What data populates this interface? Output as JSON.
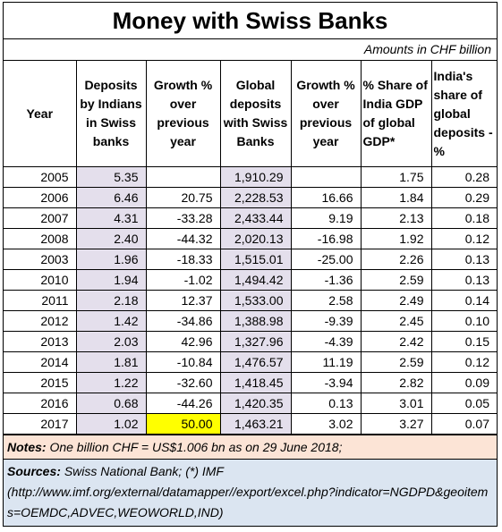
{
  "title": "Money with Swiss Banks",
  "units": "Amounts in CHF billion",
  "columns": [
    "Year",
    "Deposits by Indians in Swiss banks",
    "Growth % over previous year",
    "Global deposits with Swiss Banks",
    "Growth % over previous year",
    "% Share of India GDP of global GDP*",
    "India's share of global deposits - %"
  ],
  "rows": [
    [
      "2005",
      "5.35",
      "",
      "1,910.29",
      "",
      "1.75",
      "0.28"
    ],
    [
      "2006",
      "6.46",
      "20.75",
      "2,228.53",
      "16.66",
      "1.84",
      "0.29"
    ],
    [
      "2007",
      "4.31",
      "-33.28",
      "2,433.44",
      "9.19",
      "2.13",
      "0.18"
    ],
    [
      "2008",
      "2.40",
      "-44.32",
      "2,020.13",
      "-16.98",
      "1.92",
      "0.12"
    ],
    [
      "2003",
      "1.96",
      "-18.33",
      "1,515.01",
      "-25.00",
      "2.26",
      "0.13"
    ],
    [
      "2010",
      "1.94",
      "-1.02",
      "1,494.42",
      "-1.36",
      "2.59",
      "0.13"
    ],
    [
      "2011",
      "2.18",
      "12.37",
      "1,533.00",
      "2.58",
      "2.49",
      "0.14"
    ],
    [
      "2012",
      "1.42",
      "-34.86",
      "1,388.98",
      "-9.39",
      "2.45",
      "0.10"
    ],
    [
      "2013",
      "2.03",
      "42.96",
      "1,327.96",
      "-4.39",
      "2.42",
      "0.15"
    ],
    [
      "2014",
      "1.81",
      "-10.84",
      "1,476.57",
      "11.19",
      "2.59",
      "0.12"
    ],
    [
      "2015",
      "1.22",
      "-32.60",
      "1,418.45",
      "-3.94",
      "2.82",
      "0.09"
    ],
    [
      "2016",
      "0.68",
      "-44.26",
      "1,420.35",
      "0.13",
      "3.01",
      "0.05"
    ],
    [
      "2017",
      "1.02",
      "50.00",
      "1,463.21",
      "3.02",
      "3.27",
      "0.07"
    ]
  ],
  "notes": {
    "label": "Notes:",
    "text": "One billion CHF = US$1.006 bn as on 29 June 2018;"
  },
  "sources": {
    "label": "Sources:",
    "text": "Swiss National Bank; (*) IMF",
    "url": "(http://www.imf.org/external/datamapper//export/excel.php?indicator=NGDPD&geoitems=OEMDC,ADVEC,WEOWORLD,IND)"
  },
  "colors": {
    "shaded_column": "#e4dfec",
    "highlight": "#ffff00",
    "notes_bg": "#fce4d6",
    "sources_bg": "#dbe5f1"
  }
}
